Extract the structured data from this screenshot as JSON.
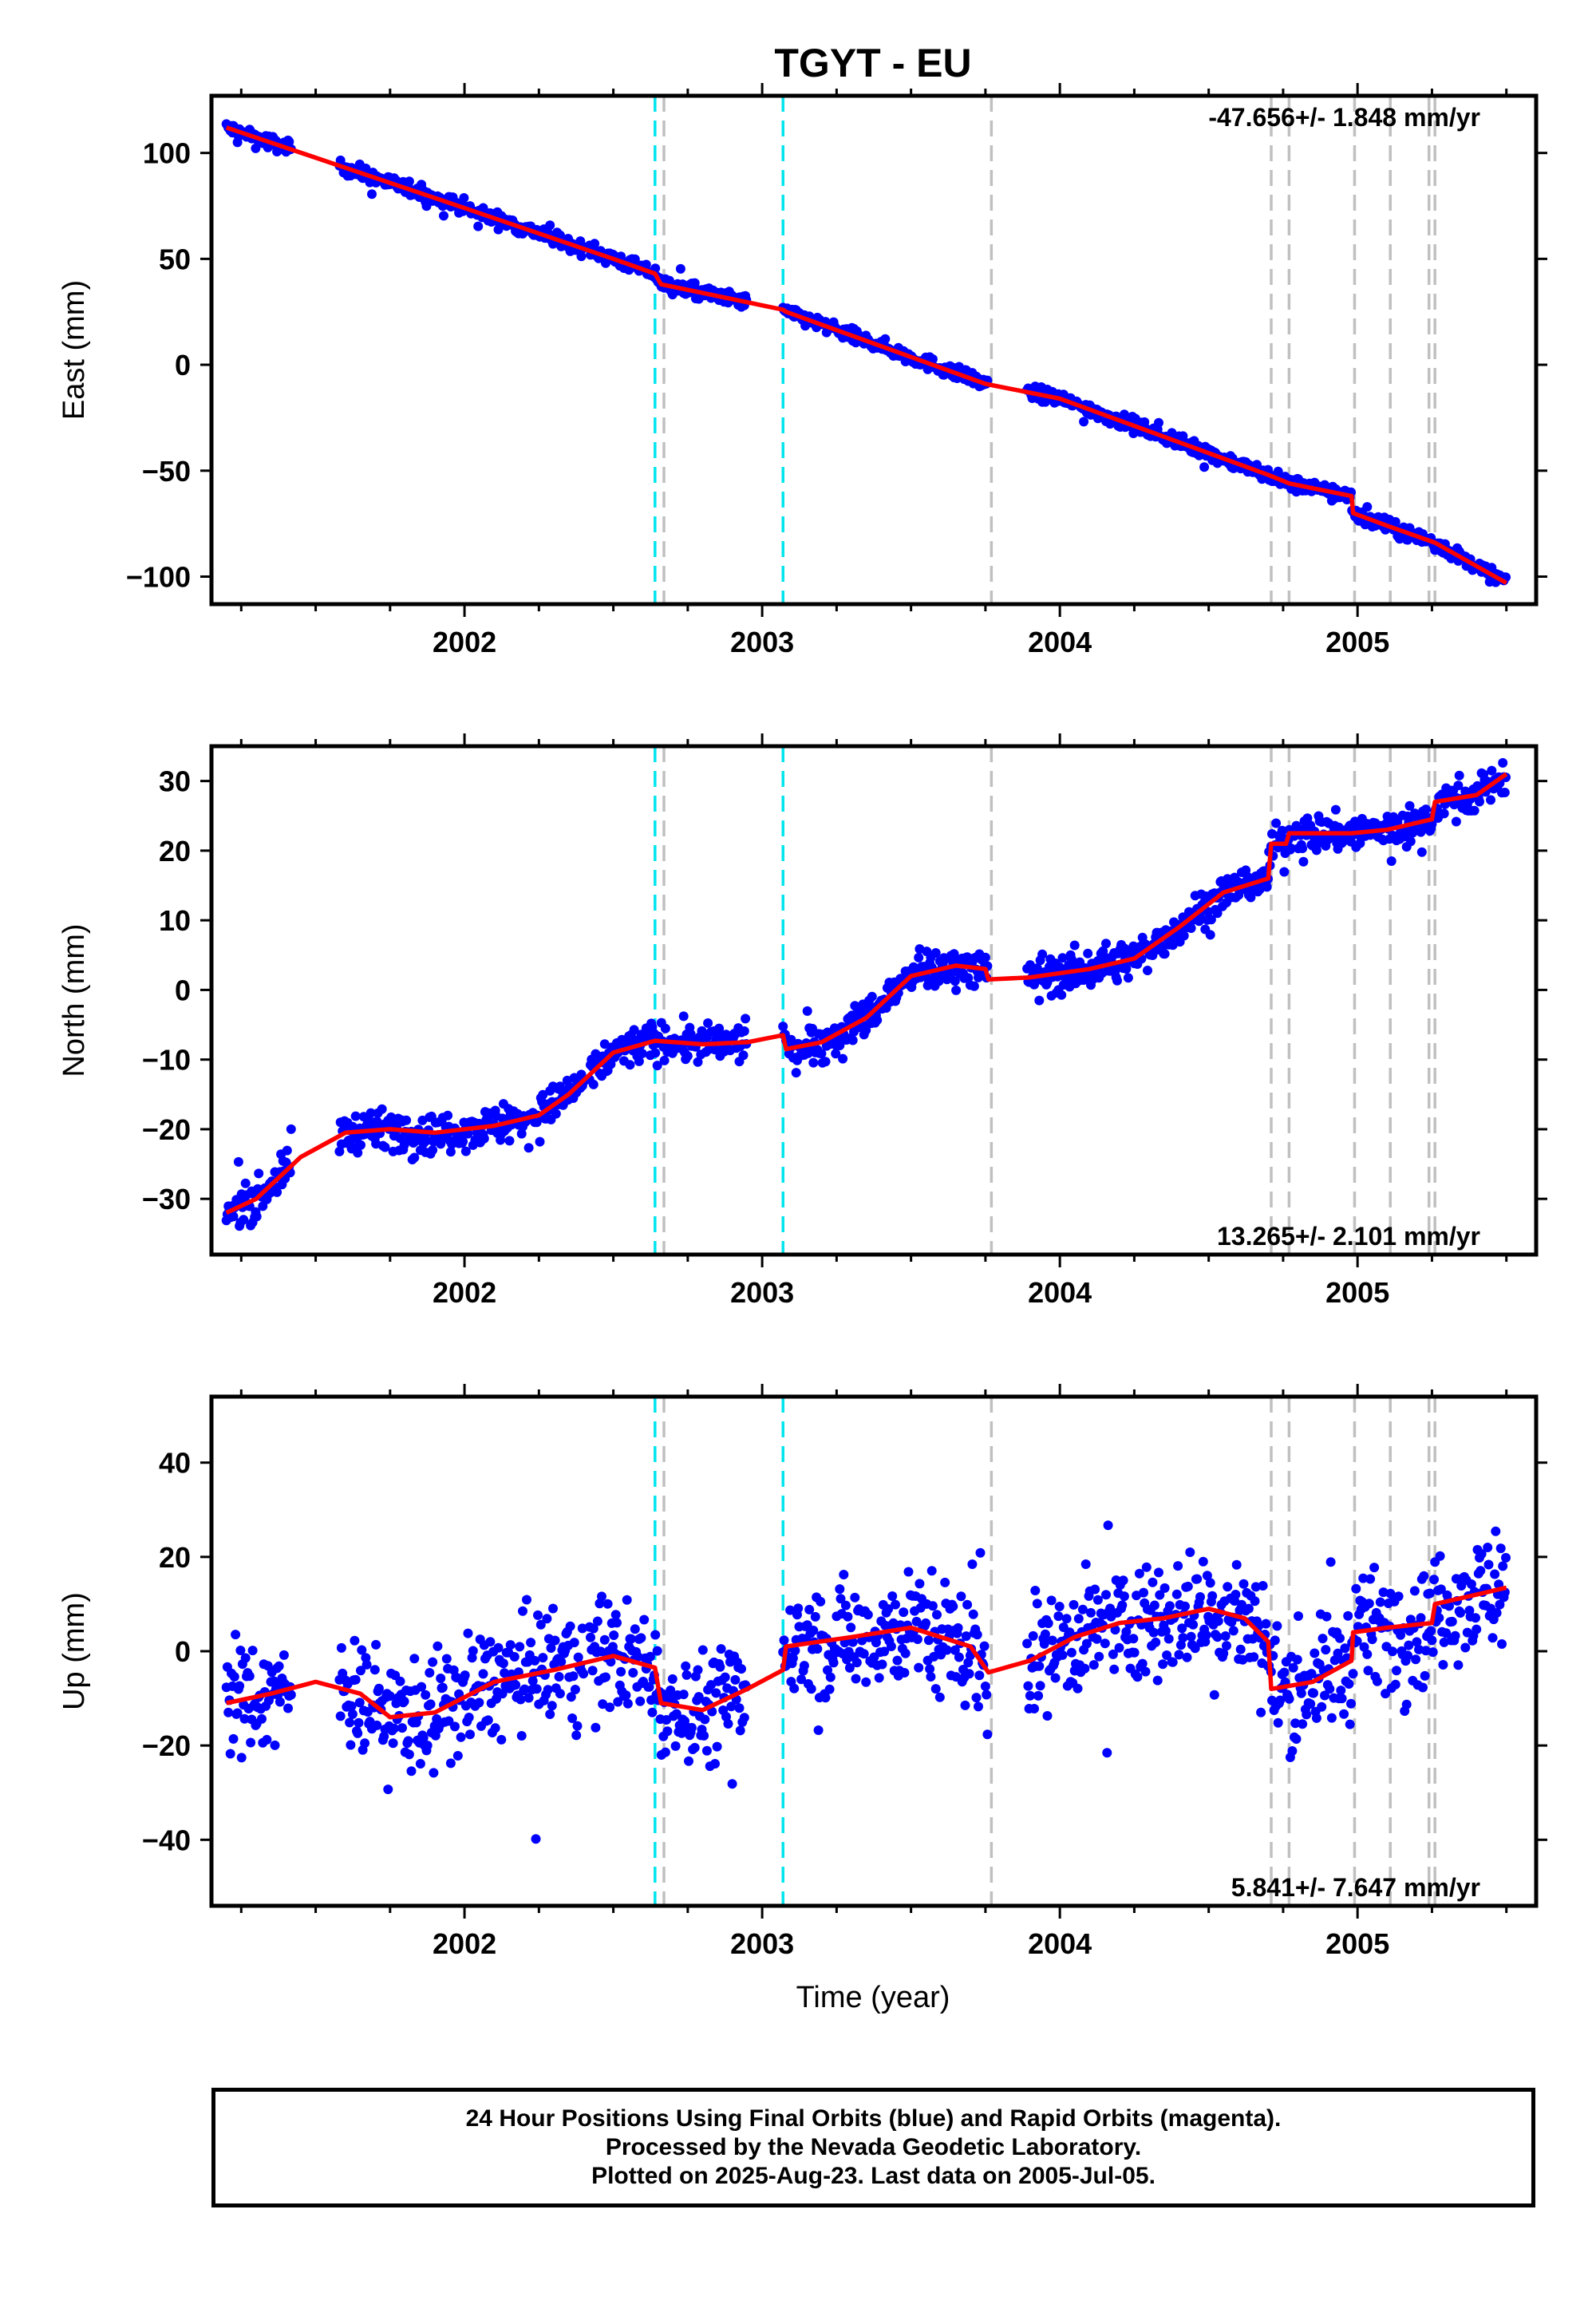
{
  "title": "TGYT - EU",
  "xlabel": "Time (year)",
  "caption": {
    "line1": "24 Hour Positions Using Final Orbits (blue) and Rapid Orbits (magenta).",
    "line2": "Processed by the Nevada Geodetic Laboratory.",
    "line3": "Plotted on 2025-Aug-23. Last data on 2005-Jul-05."
  },
  "colors": {
    "data": "#0000ff",
    "model": "#ff0000",
    "equipment_change": "#00e5ee",
    "earthquake": "#c0c0c0"
  },
  "chart_data": [
    {
      "type": "scatter",
      "name": "east",
      "ylabel": "East (mm)",
      "rate_label": "-47.656+/- 1.848 mm/yr",
      "xlim": [
        2001.15,
        2005.6
      ],
      "ylim": [
        -113,
        127
      ],
      "xticks": [
        2002,
        2003,
        2004,
        2005
      ],
      "yticks": [
        100,
        50,
        0,
        -50,
        -100
      ],
      "ytick_labels": [
        "100",
        "50",
        "0",
        "−50",
        "−100"
      ],
      "model": [
        [
          2001.2,
          112
        ],
        [
          2002,
          74
        ],
        [
          2002.5,
          50
        ],
        [
          2002.64,
          43
        ],
        [
          2002.66,
          38
        ],
        [
          2003.07,
          26
        ],
        [
          2003.08,
          25
        ],
        [
          2003.75,
          -9
        ],
        [
          2004,
          -16
        ],
        [
          2004.7,
          -52
        ],
        [
          2004.77,
          -56
        ],
        [
          2004.98,
          -62
        ],
        [
          2004.985,
          -70
        ],
        [
          2005.1,
          -76
        ],
        [
          2005.26,
          -84
        ],
        [
          2005.5,
          -103
        ]
      ],
      "scatter_noise": 3,
      "segments": [
        [
          2001.2,
          2001.42
        ],
        [
          2001.58,
          2002.4
        ],
        [
          2002.42,
          2002.95
        ],
        [
          2003.07,
          2003.76
        ],
        [
          2003.89,
          2005.5
        ]
      ]
    },
    {
      "type": "scatter",
      "name": "north",
      "ylabel": "North (mm)",
      "rate_label": "13.265+/- 2.101 mm/yr",
      "xlim": [
        2001.15,
        2005.6
      ],
      "ylim": [
        -38,
        35
      ],
      "xticks": [
        2002,
        2003,
        2004,
        2005
      ],
      "yticks": [
        30,
        20,
        10,
        0,
        -10,
        -20,
        -30
      ],
      "ytick_labels": [
        "30",
        "20",
        "10",
        "0",
        "−10",
        "−20",
        "−30"
      ],
      "model": [
        [
          2001.2,
          -32
        ],
        [
          2001.3,
          -30
        ],
        [
          2001.45,
          -24
        ],
        [
          2001.6,
          -20.5
        ],
        [
          2001.75,
          -20
        ],
        [
          2001.9,
          -20.5
        ],
        [
          2002.1,
          -19.5
        ],
        [
          2002.25,
          -18
        ],
        [
          2002.35,
          -15
        ],
        [
          2002.5,
          -9
        ],
        [
          2002.64,
          -7.3
        ],
        [
          2002.8,
          -7.8
        ],
        [
          2002.95,
          -7.5
        ],
        [
          2003.07,
          -6.5
        ],
        [
          2003.08,
          -8.5
        ],
        [
          2003.2,
          -7.5
        ],
        [
          2003.35,
          -4
        ],
        [
          2003.5,
          2
        ],
        [
          2003.65,
          3.5
        ],
        [
          2003.75,
          3
        ],
        [
          2003.76,
          1.5
        ],
        [
          2003.9,
          1.8
        ],
        [
          2004.1,
          3
        ],
        [
          2004.25,
          4.5
        ],
        [
          2004.4,
          9
        ],
        [
          2004.55,
          14
        ],
        [
          2004.7,
          16
        ],
        [
          2004.71,
          21
        ],
        [
          2004.76,
          21
        ],
        [
          2004.77,
          22.5
        ],
        [
          2004.98,
          22.5
        ],
        [
          2005.1,
          23
        ],
        [
          2005.25,
          24.5
        ],
        [
          2005.26,
          27
        ],
        [
          2005.4,
          28
        ],
        [
          2005.5,
          31
        ]
      ],
      "scatter_noise": 2.5,
      "segments": [
        [
          2001.2,
          2001.42
        ],
        [
          2001.58,
          2002.4
        ],
        [
          2002.42,
          2002.95
        ],
        [
          2003.07,
          2003.76
        ],
        [
          2003.89,
          2005.5
        ]
      ]
    },
    {
      "type": "scatter",
      "name": "up",
      "ylabel": "Up (mm)",
      "rate_label": "5.841+/- 7.647 mm/yr",
      "xlim": [
        2001.15,
        2005.6
      ],
      "ylim": [
        -54,
        54
      ],
      "xticks": [
        2002,
        2003,
        2004,
        2005
      ],
      "yticks": [
        40,
        20,
        0,
        -20,
        -40
      ],
      "ytick_labels": [
        "40",
        "20",
        "0",
        "−20",
        "−40"
      ],
      "model": [
        [
          2001.2,
          -11
        ],
        [
          2001.35,
          -9
        ],
        [
          2001.5,
          -6.5
        ],
        [
          2001.65,
          -9
        ],
        [
          2001.75,
          -14
        ],
        [
          2001.9,
          -13
        ],
        [
          2002.1,
          -6.5
        ],
        [
          2002.3,
          -4
        ],
        [
          2002.5,
          -1
        ],
        [
          2002.64,
          -3.5
        ],
        [
          2002.66,
          -11
        ],
        [
          2002.8,
          -12.5
        ],
        [
          2002.95,
          -8
        ],
        [
          2003.07,
          -4
        ],
        [
          2003.08,
          1
        ],
        [
          2003.3,
          3
        ],
        [
          2003.5,
          5
        ],
        [
          2003.7,
          1
        ],
        [
          2003.76,
          -4.5
        ],
        [
          2003.9,
          -2
        ],
        [
          2004.05,
          3
        ],
        [
          2004.2,
          6
        ],
        [
          2004.35,
          7
        ],
        [
          2004.5,
          9
        ],
        [
          2004.62,
          7
        ],
        [
          2004.7,
          2
        ],
        [
          2004.71,
          -8
        ],
        [
          2004.85,
          -6.5
        ],
        [
          2004.98,
          -2
        ],
        [
          2004.985,
          4
        ],
        [
          2005.1,
          5
        ],
        [
          2005.25,
          6
        ],
        [
          2005.26,
          10
        ],
        [
          2005.4,
          12
        ],
        [
          2005.5,
          13.5
        ]
      ],
      "scatter_noise": 11,
      "segments": [
        [
          2001.2,
          2001.42
        ],
        [
          2001.58,
          2002.4
        ],
        [
          2002.42,
          2002.95
        ],
        [
          2003.07,
          2003.76
        ],
        [
          2003.89,
          2005.5
        ]
      ]
    }
  ],
  "event_lines": {
    "equipment_change": [
      2002.64,
      2003.07
    ],
    "earthquake": [
      2002.67,
      2003.77,
      2004.71,
      2004.77,
      2004.99,
      2005.11,
      2005.24,
      2005.26
    ]
  }
}
